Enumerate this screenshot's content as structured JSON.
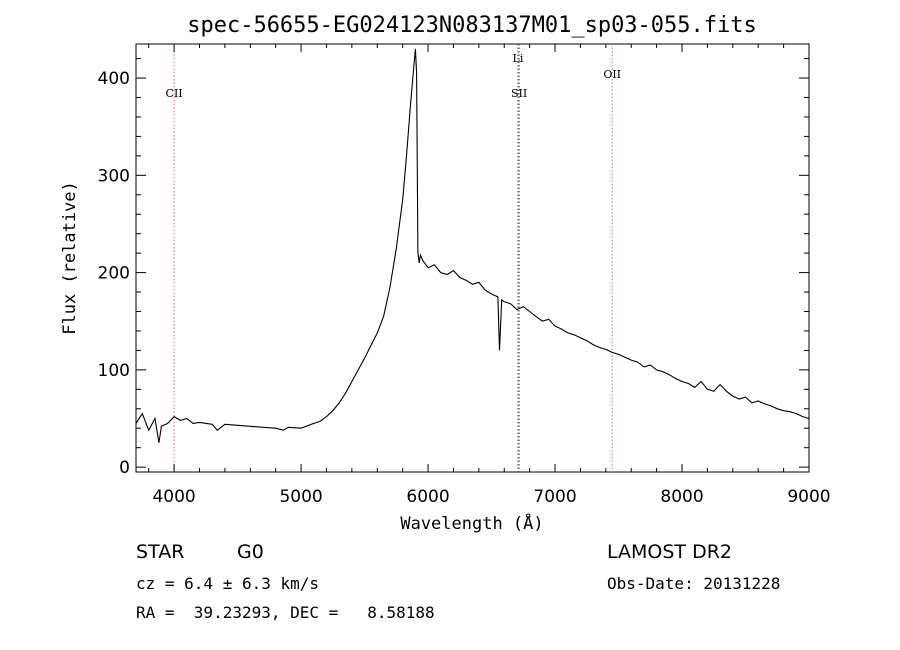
{
  "chart_data": {
    "type": "line",
    "title": "spec-56655-EG024123N083137M01_sp03-055.fits",
    "xlabel": "Wavelength (Å)",
    "ylabel": "Flux (relative)",
    "xlim": [
      3700,
      9000
    ],
    "ylim": [
      -5,
      435
    ],
    "x_ticks": [
      4000,
      5000,
      6000,
      7000,
      8000,
      9000
    ],
    "y_ticks": [
      0,
      100,
      200,
      300,
      400
    ],
    "grid": false,
    "series": [
      {
        "x": [
          3700,
          3750,
          3800,
          3850,
          3880,
          3900,
          3950,
          4000,
          4050,
          4100,
          4150,
          4200,
          4300,
          4340,
          4400,
          4500,
          4600,
          4700,
          4800,
          4860,
          4900,
          5000,
          5100,
          5150,
          5200,
          5250,
          5300,
          5350,
          5400,
          5450,
          5500,
          5550,
          5600,
          5650,
          5700,
          5750,
          5800,
          5830,
          5860,
          5880,
          5900,
          5910,
          5920,
          5930,
          5940,
          5960,
          6000,
          6050,
          6100,
          6150,
          6200,
          6250,
          6300,
          6350,
          6400,
          6450,
          6500,
          6550,
          6563,
          6580,
          6600,
          6650,
          6700,
          6750,
          6800,
          6850,
          6900,
          6950,
          7000,
          7050,
          7100,
          7150,
          7200,
          7250,
          7300,
          7350,
          7400,
          7450,
          7500,
          7550,
          7600,
          7650,
          7700,
          7750,
          7800,
          7850,
          7900,
          7950,
          8000,
          8050,
          8100,
          8150,
          8200,
          8250,
          8300,
          8350,
          8400,
          8450,
          8500,
          8550,
          8600,
          8650,
          8700,
          8750,
          8800,
          8850,
          8900,
          8950,
          9000
        ],
        "y": [
          45,
          55,
          38,
          50,
          25,
          42,
          45,
          52,
          48,
          50,
          45,
          46,
          44,
          38,
          44,
          43,
          42,
          41,
          40,
          38,
          41,
          40,
          45,
          47,
          52,
          58,
          66,
          76,
          88,
          100,
          112,
          125,
          138,
          155,
          185,
          225,
          275,
          320,
          370,
          400,
          430,
          405,
          220,
          210,
          218,
          212,
          205,
          208,
          200,
          198,
          202,
          195,
          192,
          188,
          190,
          182,
          178,
          175,
          120,
          172,
          170,
          168,
          162,
          165,
          160,
          155,
          150,
          152,
          145,
          142,
          138,
          136,
          133,
          130,
          126,
          123,
          121,
          118,
          116,
          113,
          110,
          108,
          103,
          105,
          100,
          98,
          95,
          91,
          88,
          86,
          82,
          88,
          80,
          78,
          85,
          78,
          73,
          70,
          72,
          66,
          68,
          65,
          63,
          60,
          58,
          57,
          55,
          52,
          50
        ]
      }
    ],
    "vlines": [
      {
        "x": 4000,
        "label": "CII",
        "color": "#e06666"
      },
      {
        "x": 6708,
        "label": "Li",
        "color": "#555555"
      },
      {
        "x": 6717,
        "label": "SII",
        "color": "#555555"
      },
      {
        "x": 7450,
        "label": "OII",
        "color": "#e06666"
      }
    ]
  },
  "info": {
    "class": "STAR",
    "subclass": "G0",
    "survey": "LAMOST DR2",
    "cz": "cz = 6.4 ± 6.3 km/s",
    "obs_date": "Obs-Date: 20131228",
    "coords": "RA =  39.23293, DEC =   8.58188"
  }
}
